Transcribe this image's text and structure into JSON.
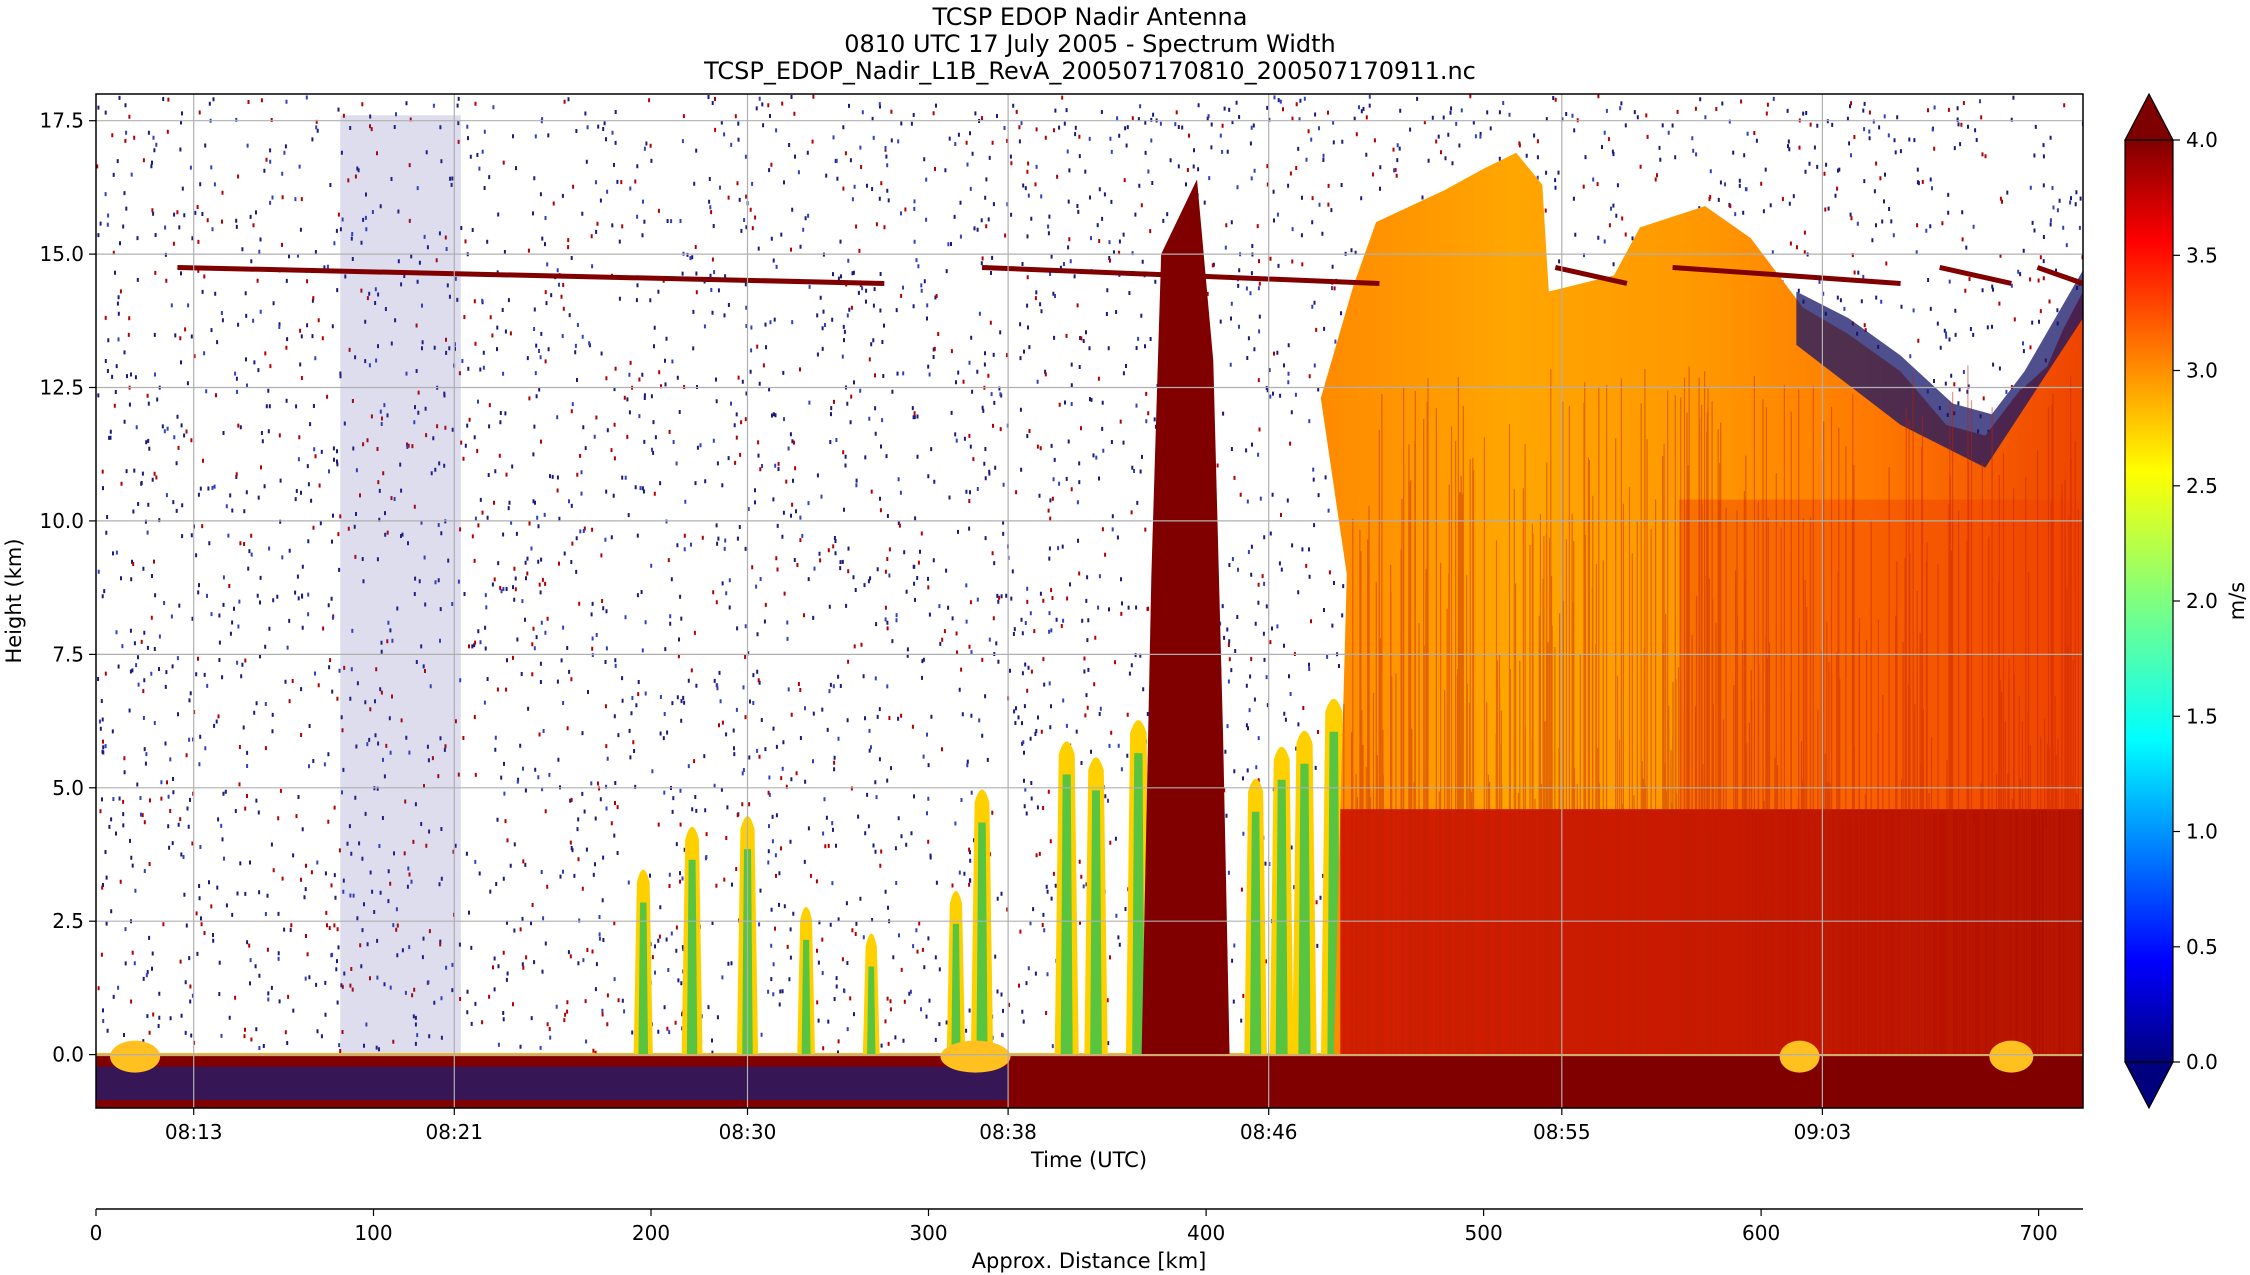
{
  "chart_data": {
    "type": "heatmap",
    "title_lines": [
      "TCSP EDOP Nadir Antenna",
      "0810 UTC 17 July 2005 - Spectrum Width",
      "TCSP_EDOP_Nadir_L1B_RevA_200507170810_200507170911.nc"
    ],
    "xlabel": "Time (UTC)",
    "ylabel": "Height (km)",
    "x_ticks": [
      "08:13",
      "08:21",
      "08:30",
      "08:38",
      "08:46",
      "08:55",
      "09:03"
    ],
    "y_ticks": [
      "0.0",
      "2.5",
      "5.0",
      "7.5",
      "10.0",
      "12.5",
      "15.0",
      "17.5"
    ],
    "ylim": [
      -1.0,
      18.0
    ],
    "grid": true,
    "colorbar": {
      "label": "m/s",
      "range": [
        0.0,
        4.0
      ],
      "ticks": [
        "0.0",
        "0.5",
        "1.0",
        "1.5",
        "2.0",
        "2.5",
        "3.0",
        "3.5",
        "4.0"
      ],
      "colormap": "jet",
      "extend": "both"
    },
    "distance_axis": {
      "label": "Approx. Distance [km]",
      "ticks": [
        "0",
        "100",
        "200",
        "300",
        "400",
        "500",
        "600",
        "700"
      ],
      "range": [
        0,
        716
      ]
    },
    "features": {
      "surface_height_km": 0.0,
      "aircraft_altitude_km": 14.6,
      "convective_core_start": "08:38",
      "convective_core_end": "09:11",
      "intense_core_time": "08:43",
      "colors": {
        "noise_dark": "#1a1a80",
        "noise_red": "#b40000",
        "maroon": "#800000",
        "orange": "#ff9a00",
        "red": "#f03000"
      }
    }
  }
}
